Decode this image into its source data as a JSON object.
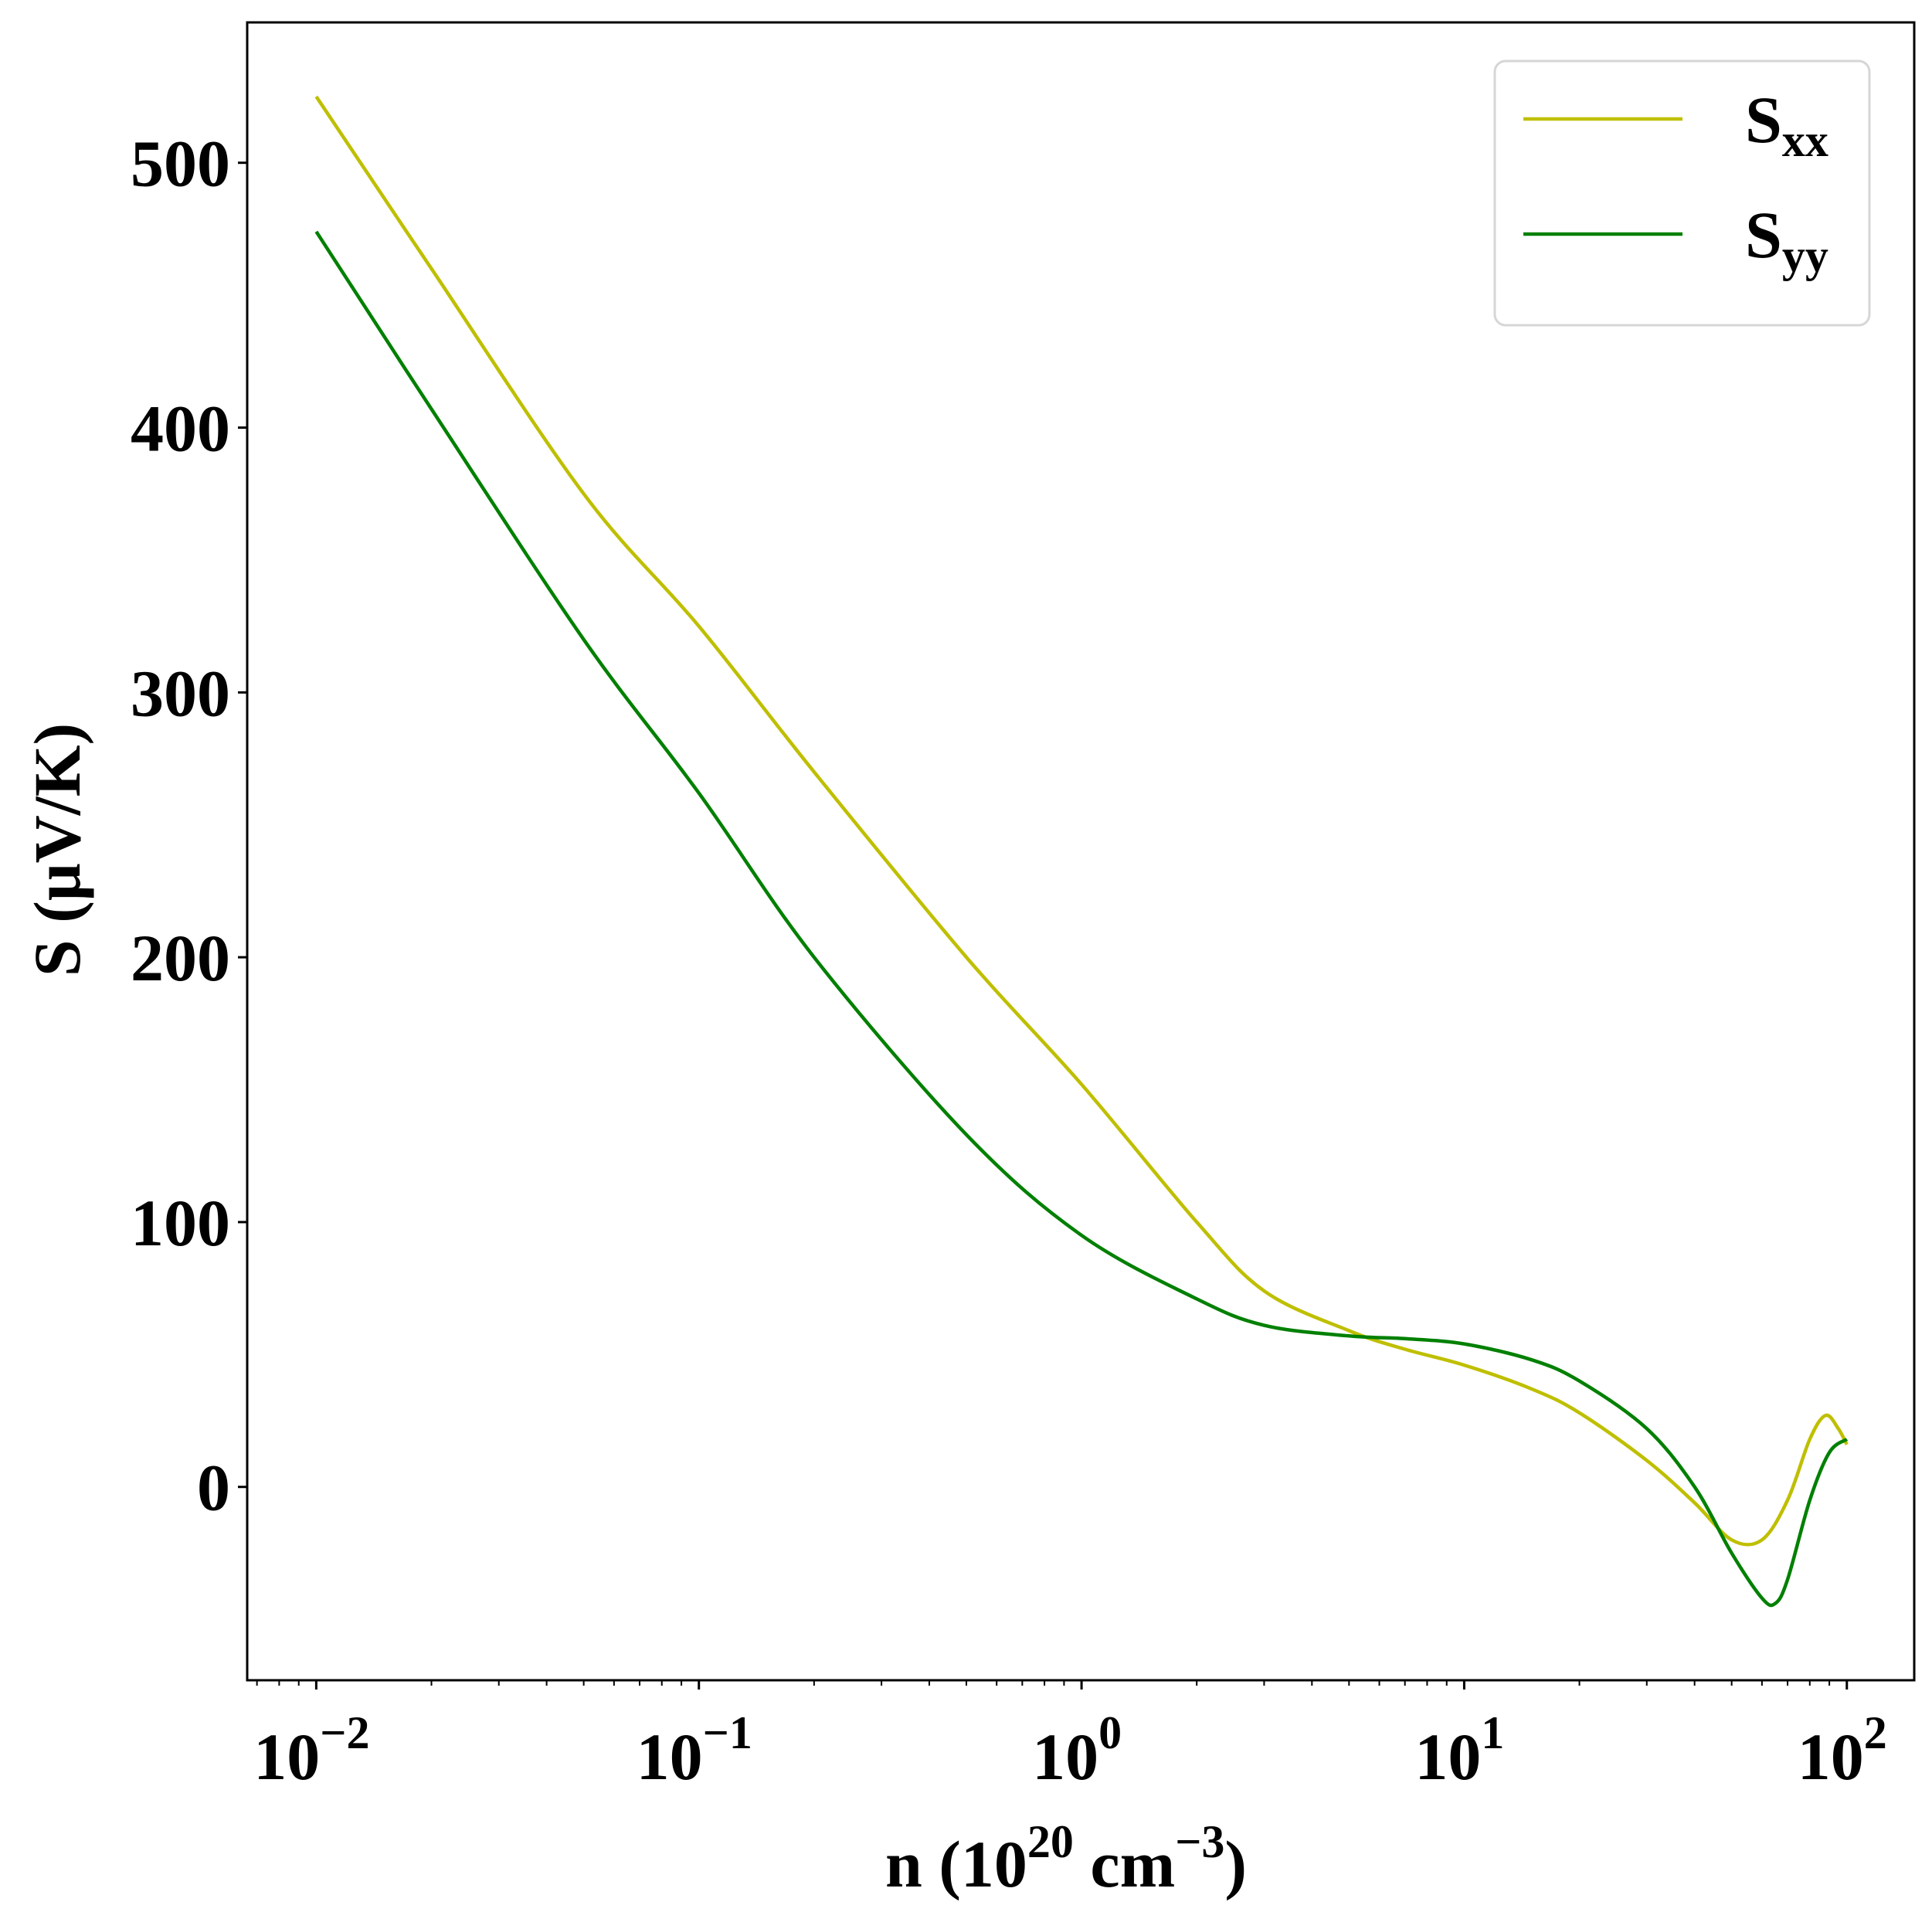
{
  "chart_data": {
    "type": "line",
    "title": "",
    "xlabel": {
      "prefix": "n (10",
      "sup1": "20",
      "middle": " cm",
      "sup2": "−3",
      "suffix": ")"
    },
    "ylabel": "S (μV/K)",
    "x_scale": "log",
    "xlim": [
      0.0066,
      150
    ],
    "ylim": [
      -73,
      553
    ],
    "x_ticks": [
      {
        "value": 0.01,
        "base": "10",
        "exp": "−2"
      },
      {
        "value": 0.1,
        "base": "10",
        "exp": "−1"
      },
      {
        "value": 1,
        "base": "10",
        "exp": "0"
      },
      {
        "value": 10,
        "base": "10",
        "exp": "1"
      },
      {
        "value": 100,
        "base": "10",
        "exp": "2"
      }
    ],
    "y_ticks": [
      0,
      100,
      200,
      300,
      400,
      500
    ],
    "grid": false,
    "legend_position": "top-right",
    "series": [
      {
        "name": "S",
        "subscript": "xx",
        "color": "#bfbf00",
        "x": [
          0.01,
          0.02,
          0.05,
          0.1,
          0.2,
          0.5,
          1,
          2,
          3,
          5,
          7,
          10,
          15,
          20,
          30,
          40,
          50,
          60,
          70,
          80,
          88,
          95,
          100
        ],
        "y": [
          525,
          460,
          375,
          325,
          270,
          200,
          152,
          100,
          74,
          59,
          52,
          46,
          37,
          28,
          10,
          -6,
          -20,
          -20,
          -5,
          18,
          27,
          22,
          16
        ]
      },
      {
        "name": "S",
        "subscript": "yy",
        "color": "#008000",
        "x": [
          0.01,
          0.02,
          0.05,
          0.1,
          0.2,
          0.5,
          1,
          2,
          3,
          5,
          7,
          10,
          15,
          20,
          30,
          40,
          50,
          60,
          65,
          70,
          80,
          90,
          100
        ],
        "y": [
          474,
          407,
          320,
          262,
          200,
          133,
          95,
          71,
          61,
          57,
          56,
          54,
          48,
          40,
          22,
          0,
          -25,
          -42,
          -44,
          -35,
          -5,
          13,
          18
        ]
      }
    ]
  }
}
